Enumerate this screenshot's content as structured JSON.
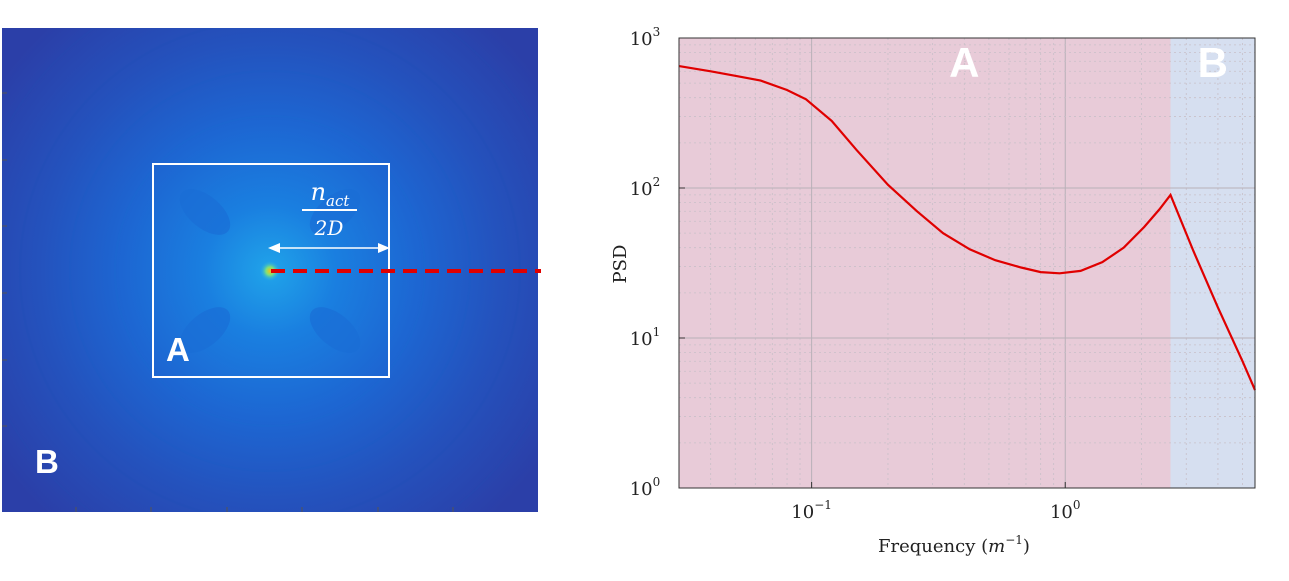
{
  "map_panel": {
    "region_inner_label": "A",
    "region_outer_label": "B",
    "arrow_label_numerator_main": "n",
    "arrow_label_numerator_sub": "act",
    "arrow_label_denominator": "2D",
    "colors": {
      "background": "#2b3fa8",
      "mid": "#1c6bd8",
      "core": "#f2c21a",
      "box": "#ffffff",
      "cut_line": "#e00000"
    }
  },
  "chart_data": {
    "type": "line",
    "title": "",
    "xlabel_text": "Frequency",
    "xlabel_unit_base": "m",
    "xlabel_unit_exp": "−1",
    "ylabel": "PSD",
    "x_scale": "log",
    "y_scale": "log",
    "xlim": [
      0.03,
      5.6
    ],
    "ylim": [
      1,
      1000
    ],
    "x_tick_labels": [
      {
        "value": 0.1,
        "base": "10",
        "exp": "−1"
      },
      {
        "value": 1,
        "base": "10",
        "exp": "0"
      }
    ],
    "y_tick_labels": [
      {
        "value": 1,
        "base": "10",
        "exp": "0"
      },
      {
        "value": 10,
        "base": "10",
        "exp": "1"
      },
      {
        "value": 100,
        "base": "10",
        "exp": "2"
      },
      {
        "value": 1000,
        "base": "10",
        "exp": "3"
      }
    ],
    "grid": true,
    "regions": [
      {
        "label": "A",
        "x_start": 0.03,
        "x_end": 2.6,
        "color": "#e8cbd8"
      },
      {
        "label": "B",
        "x_start": 2.6,
        "x_end": 5.6,
        "color": "#d6dff0"
      }
    ],
    "series": [
      {
        "color": "#e00000",
        "x": [
          0.03,
          0.04,
          0.05,
          0.063,
          0.08,
          0.095,
          0.12,
          0.15,
          0.2,
          0.26,
          0.33,
          0.42,
          0.53,
          0.67,
          0.8,
          0.95,
          1.15,
          1.4,
          1.7,
          2.05,
          2.35,
          2.6,
          3.2,
          4.0,
          5.0,
          5.6
        ],
        "y": [
          650,
          600,
          560,
          520,
          450,
          390,
          280,
          180,
          105,
          70,
          50,
          39,
          33,
          29.5,
          27.5,
          27,
          28,
          32,
          40,
          55,
          72,
          90,
          38,
          16,
          7,
          4.5
        ]
      }
    ]
  }
}
